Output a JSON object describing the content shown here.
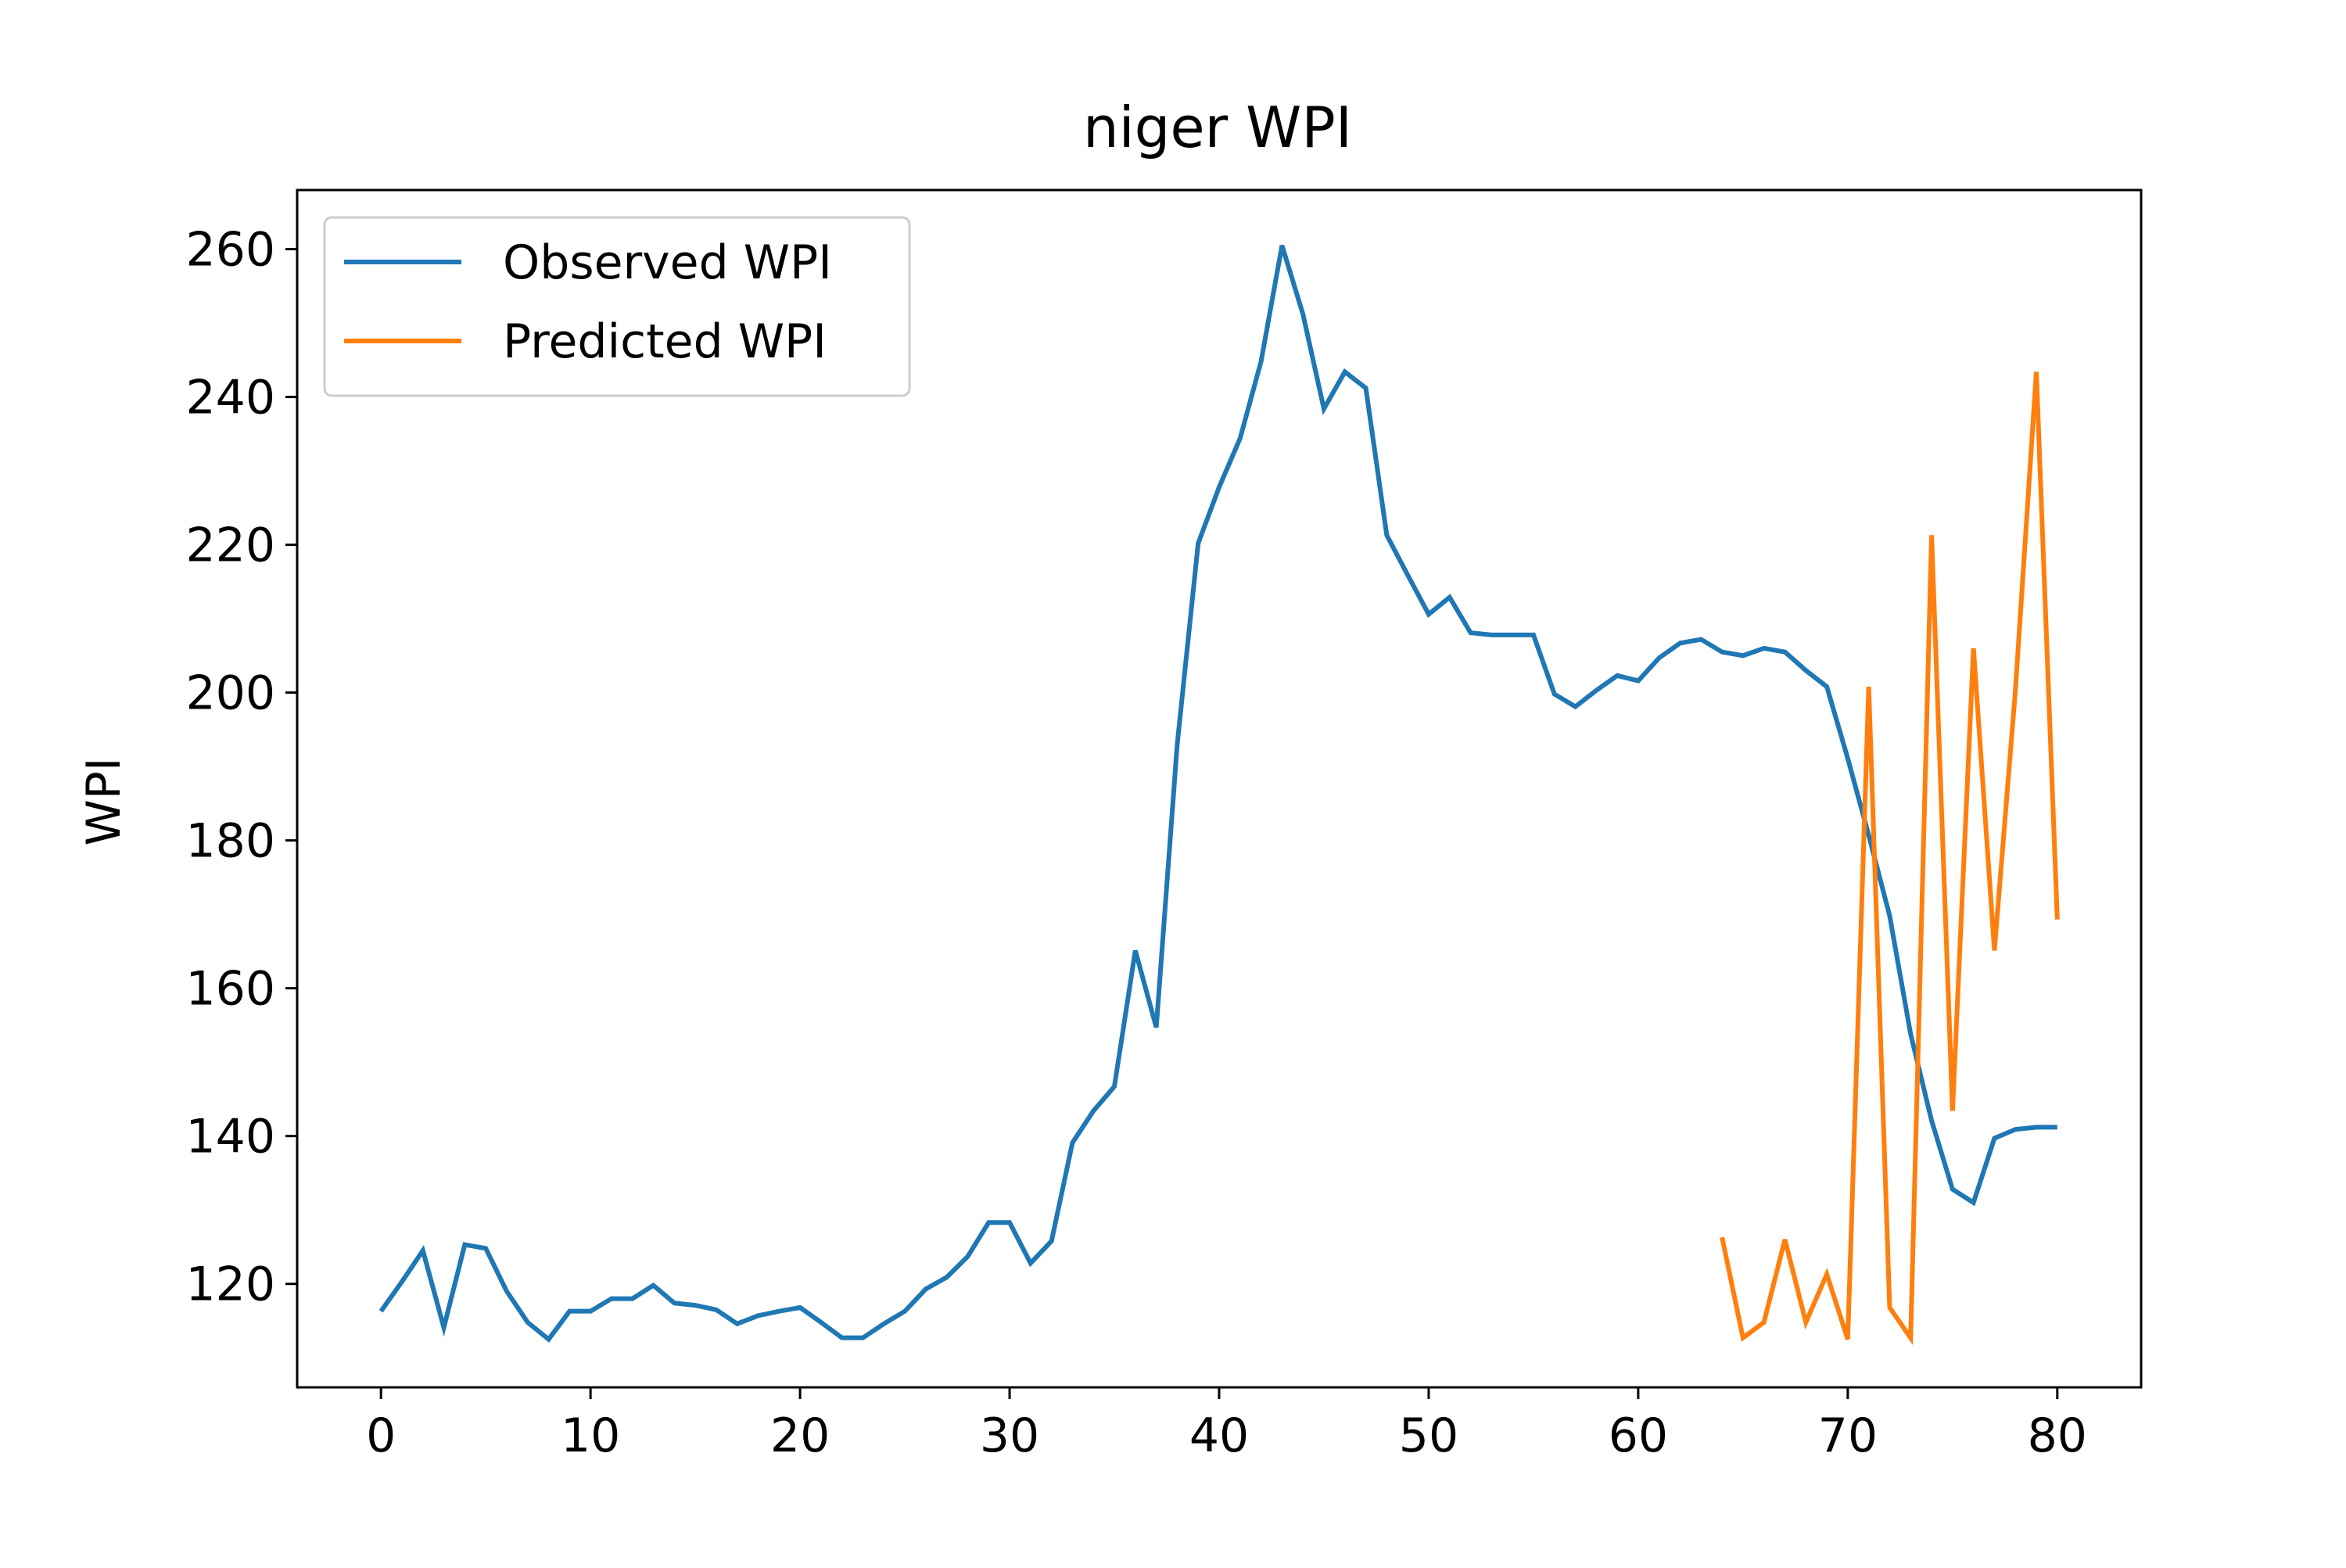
{
  "chart_data": {
    "type": "line",
    "title": "niger WPI",
    "xlabel": "",
    "ylabel": "WPI",
    "xlim": [
      -4,
      84
    ],
    "ylim": [
      106,
      268
    ],
    "xticks": [
      0,
      10,
      20,
      30,
      40,
      50,
      60,
      70,
      80
    ],
    "yticks": [
      120,
      140,
      160,
      180,
      200,
      220,
      240,
      260
    ],
    "grid": false,
    "legend_position": "top-left",
    "series": [
      {
        "name": "Observed WPI",
        "color": "#1f77b4",
        "x_start": 0,
        "values": [
          116.3,
          120.3,
          124.5,
          114.1,
          125.3,
          124.8,
          119.0,
          114.8,
          112.5,
          116.3,
          116.3,
          118.0,
          118.0,
          119.8,
          117.4,
          117.1,
          116.5,
          114.6,
          115.7,
          116.3,
          116.8,
          114.8,
          112.7,
          112.7,
          114.6,
          116.3,
          119.3,
          120.9,
          123.7,
          128.3,
          128.3,
          122.8,
          125.8,
          139.1,
          143.4,
          146.7,
          165.1,
          154.7,
          193.0,
          220.2,
          227.8,
          234.4,
          244.8,
          260.5,
          251.2,
          238.4,
          243.4,
          241.2,
          221.3,
          215.9,
          210.6,
          212.9,
          208.1,
          207.8,
          207.8,
          207.8,
          199.8,
          198.1,
          200.3,
          202.3,
          201.6,
          204.7,
          206.7,
          207.2,
          205.5,
          205.0,
          206.0,
          205.5,
          203.0,
          200.8,
          191.1,
          180.7,
          169.8,
          153.8,
          142.1,
          132.8,
          131.0,
          139.7,
          140.9,
          141.2,
          141.2
        ]
      },
      {
        "name": "Predicted WPI",
        "color": "#ff7f0e",
        "x_start": 64,
        "values": [
          126.3,
          112.7,
          114.8,
          126.0,
          114.8,
          121.3,
          112.5,
          200.8,
          116.8,
          112.7,
          221.3,
          143.4,
          206.0,
          165.1,
          200.3,
          243.4,
          169.3
        ]
      }
    ]
  }
}
